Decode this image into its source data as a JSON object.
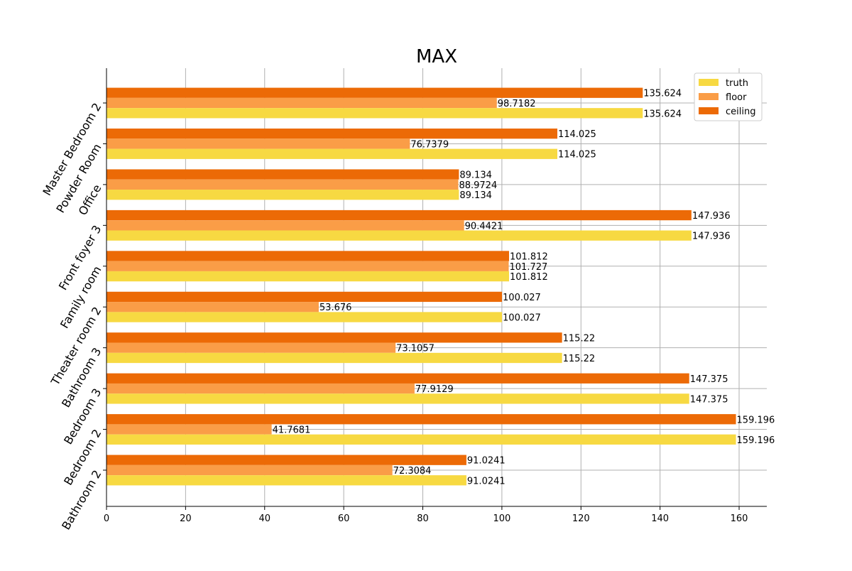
{
  "chart_data": {
    "type": "bar",
    "orientation": "horizontal",
    "title": "MAX",
    "xlabel": "",
    "ylabel": "",
    "categories": [
      "Master Bedroom 2",
      "Powder Room",
      "Office",
      "Front foyer 3",
      "Family room",
      "Theater room 2",
      "Bathroom 3",
      "Bedroom 3",
      "Bedroom 2",
      "Bathroom 2"
    ],
    "series": [
      {
        "name": "truth",
        "color": "#f7d942",
        "values": [
          135.624,
          114.025,
          89.134,
          147.936,
          101.812,
          100.027,
          115.22,
          147.375,
          159.196,
          91.0241
        ],
        "labels": [
          "135.624",
          "114.025",
          "89.134",
          "147.936",
          "101.812",
          "100.027",
          "115.22",
          "147.375",
          "159.196",
          "91.0241"
        ]
      },
      {
        "name": "floor",
        "color": "#fa9d47",
        "values": [
          98.7182,
          76.7379,
          88.9724,
          90.4421,
          101.727,
          53.676,
          73.1057,
          77.9129,
          41.7681,
          72.3084
        ],
        "labels": [
          "98.7182",
          "76.7379",
          "88.9724",
          "90.4421",
          "101.727",
          "53.676",
          "73.1057",
          "77.9129",
          "41.7681",
          "72.3084"
        ]
      },
      {
        "name": "ceiling",
        "color": "#ec6a06",
        "values": [
          135.624,
          114.025,
          89.134,
          147.936,
          101.812,
          100.027,
          115.22,
          147.375,
          159.196,
          91.0241
        ],
        "labels": [
          "135.624",
          "114.025",
          "89.134",
          "147.936",
          "101.812",
          "100.027",
          "115.22",
          "147.375",
          "159.196",
          "91.0241"
        ]
      }
    ],
    "xlim": [
      0,
      167
    ],
    "xticks": [
      0,
      20,
      40,
      60,
      80,
      100,
      120,
      140,
      160
    ],
    "grid": true,
    "legend_position": "top-right"
  }
}
